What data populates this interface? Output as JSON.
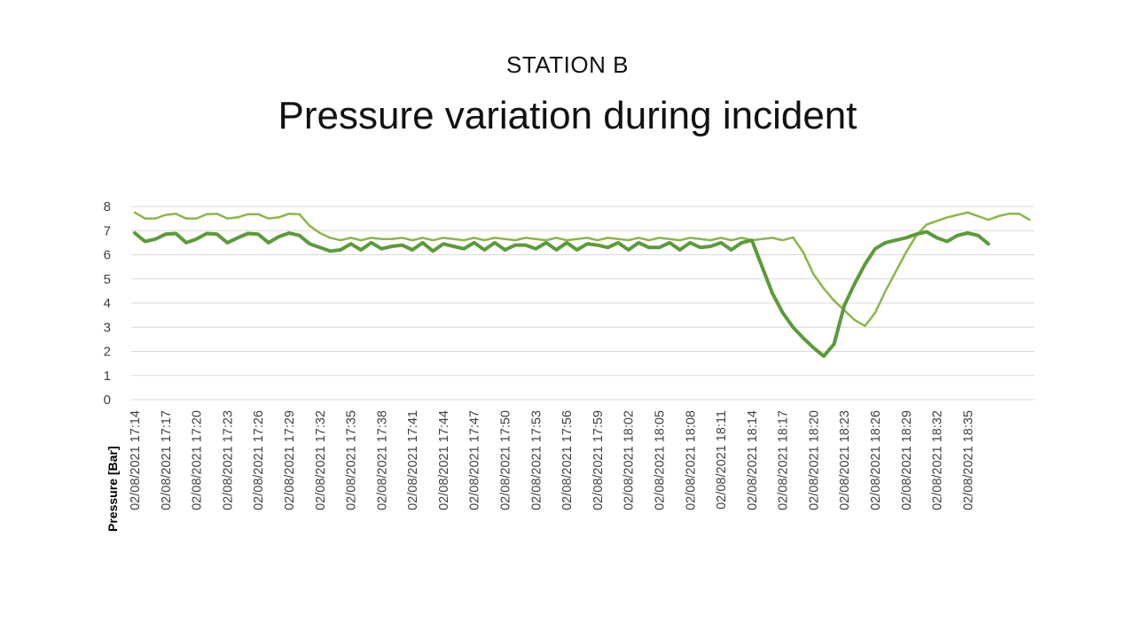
{
  "slide": {
    "supertitle": "STATION B",
    "title": "Pressure variation during incident"
  },
  "chart_data": {
    "type": "line",
    "title": "Pressure variation during incident",
    "ylabel": "Pressure [Bar]",
    "xlabel": "",
    "ylim": [
      0,
      8
    ],
    "y_ticks": [
      0,
      1,
      2,
      3,
      4,
      5,
      6,
      7,
      8
    ],
    "grid": true,
    "x_tick_labels": [
      "02/08/2021 17:14",
      "02/08/2021 17:17",
      "02/08/2021 17:20",
      "02/08/2021 17:23",
      "02/08/2021 17:26",
      "02/08/2021 17:29",
      "02/08/2021 17:32",
      "02/08/2021 17:35",
      "02/08/2021 17:38",
      "02/08/2021 17:41",
      "02/08/2021 17:44",
      "02/08/2021 17:47",
      "02/08/2021 17:50",
      "02/08/2021 17:53",
      "02/08/2021 17:56",
      "02/08/2021 17:59",
      "02/08/2021 18:02",
      "02/08/2021 18:05",
      "02/08/2021 18:08",
      "02/08/2021 18:11",
      "02/08/2021 18:14",
      "02/08/2021 18:17",
      "02/08/2021 18:20",
      "02/08/2021 18:23",
      "02/08/2021 18:26",
      "02/08/2021 18:29",
      "02/08/2021 18:32",
      "02/08/2021 18:35"
    ],
    "x_start": "02/08/2021 17:14",
    "x_step_minutes": 1,
    "series": [
      {
        "color": "#8db548",
        "values": [
          7.75,
          7.5,
          7.5,
          7.65,
          7.7,
          7.5,
          7.5,
          7.68,
          7.7,
          7.5,
          7.55,
          7.68,
          7.68,
          7.5,
          7.55,
          7.7,
          7.68,
          7.2,
          6.9,
          6.7,
          6.6,
          6.7,
          6.6,
          6.7,
          6.65,
          6.65,
          6.7,
          6.6,
          6.7,
          6.6,
          6.7,
          6.65,
          6.6,
          6.7,
          6.6,
          6.7,
          6.65,
          6.6,
          6.7,
          6.65,
          6.6,
          6.7,
          6.6,
          6.65,
          6.7,
          6.6,
          6.7,
          6.65,
          6.6,
          6.7,
          6.6,
          6.7,
          6.65,
          6.6,
          6.7,
          6.65,
          6.6,
          6.7,
          6.6,
          6.7,
          6.6,
          6.65,
          6.7,
          6.6,
          6.72,
          6.1,
          5.2,
          4.6,
          4.1,
          3.7,
          3.3,
          3.05,
          3.6,
          4.5,
          5.3,
          6.1,
          6.8,
          7.25,
          7.4,
          7.55,
          7.65,
          7.75,
          7.6,
          7.45,
          7.6,
          7.7,
          7.7,
          7.45
        ]
      },
      {
        "color": "#5c9a3a",
        "values": [
          6.9,
          6.55,
          6.65,
          6.85,
          6.88,
          6.5,
          6.65,
          6.88,
          6.85,
          6.5,
          6.7,
          6.88,
          6.85,
          6.5,
          6.75,
          6.9,
          6.8,
          6.45,
          6.3,
          6.15,
          6.2,
          6.45,
          6.2,
          6.5,
          6.25,
          6.35,
          6.4,
          6.2,
          6.5,
          6.15,
          6.45,
          6.35,
          6.25,
          6.5,
          6.2,
          6.5,
          6.2,
          6.4,
          6.4,
          6.25,
          6.5,
          6.2,
          6.5,
          6.2,
          6.45,
          6.4,
          6.3,
          6.5,
          6.2,
          6.5,
          6.3,
          6.3,
          6.5,
          6.2,
          6.5,
          6.3,
          6.35,
          6.5,
          6.2,
          6.5,
          6.6,
          5.5,
          4.4,
          3.6,
          3.0,
          2.55,
          2.15,
          1.8,
          2.3,
          3.9,
          4.8,
          5.6,
          6.25,
          6.5,
          6.6,
          6.7,
          6.85,
          6.95,
          6.7,
          6.55,
          6.8,
          6.9,
          6.8,
          6.45
        ]
      }
    ]
  }
}
